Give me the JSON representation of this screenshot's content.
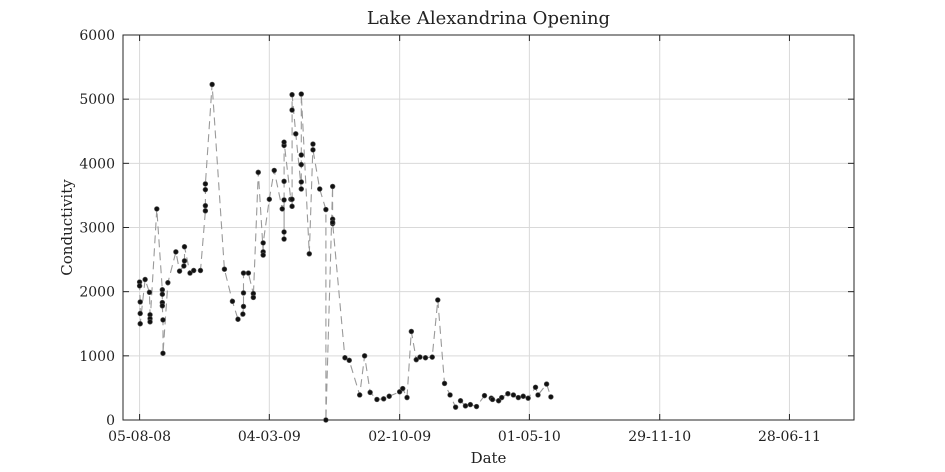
{
  "chart_data": {
    "type": "scatter",
    "title": "Lake Alexandrina Opening",
    "xlabel": "Date",
    "ylabel": "Conductivity",
    "x_is_date": true,
    "date_format": "DD-MM-YY",
    "xlim": [
      "2008-07-09",
      "2011-10-11"
    ],
    "ylim": [
      0,
      6000
    ],
    "xticks": [
      "2008-08-05",
      "2009-03-04",
      "2009-10-02",
      "2010-05-01",
      "2010-11-29",
      "2011-06-28"
    ],
    "xtick_labels": [
      "05-08-08",
      "04-03-09",
      "02-10-09",
      "01-05-10",
      "29-11-10",
      "28-06-11"
    ],
    "yticks": [
      0,
      1000,
      2000,
      3000,
      4000,
      5000,
      6000
    ],
    "ytick_labels": [
      "0",
      "1000",
      "2000",
      "3000",
      "4000",
      "5000",
      "6000"
    ],
    "grid": true,
    "legend": "none",
    "colors": {
      "points": "#111111",
      "line": "#9a9a9a"
    },
    "series": [
      {
        "style": "dashed line with markers",
        "points": [
          [
            "2008-08-05",
            2150
          ],
          [
            "2008-08-05",
            2090
          ],
          [
            "2008-08-06",
            1840
          ],
          [
            "2008-08-06",
            1660
          ],
          [
            "2008-08-06",
            1500
          ],
          [
            "2008-08-14",
            2190
          ],
          [
            "2008-08-21",
            1990
          ],
          [
            "2008-08-22",
            1640
          ],
          [
            "2008-08-22",
            1580
          ],
          [
            "2008-08-22",
            1530
          ],
          [
            "2008-09-02",
            3290
          ],
          [
            "2008-09-11",
            2030
          ],
          [
            "2008-09-11",
            1960
          ],
          [
            "2008-09-11",
            1830
          ],
          [
            "2008-09-11",
            1780
          ],
          [
            "2008-09-12",
            1560
          ],
          [
            "2008-09-12",
            1040
          ],
          [
            "2008-09-20",
            2140
          ],
          [
            "2008-10-03",
            2620
          ],
          [
            "2008-10-09",
            2320
          ],
          [
            "2008-10-16",
            2400
          ],
          [
            "2008-10-17",
            2480
          ],
          [
            "2008-10-17",
            2700
          ],
          [
            "2008-10-26",
            2290
          ],
          [
            "2008-11-01",
            2330
          ],
          [
            "2008-11-12",
            2330
          ],
          [
            "2008-11-20",
            3260
          ],
          [
            "2008-11-20",
            3340
          ],
          [
            "2008-11-20",
            3590
          ],
          [
            "2008-11-20",
            3680
          ],
          [
            "2008-12-01",
            5230
          ],
          [
            "2008-12-21",
            2350
          ],
          [
            "2009-01-03",
            1850
          ],
          [
            "2009-01-12",
            1570
          ],
          [
            "2009-01-20",
            1650
          ],
          [
            "2009-01-21",
            1770
          ],
          [
            "2009-01-21",
            1980
          ],
          [
            "2009-01-21",
            2290
          ],
          [
            "2009-01-29",
            2290
          ],
          [
            "2009-02-06",
            1970
          ],
          [
            "2009-02-06",
            1910
          ],
          [
            "2009-02-14",
            3860
          ],
          [
            "2009-02-22",
            2620
          ],
          [
            "2009-02-22",
            2570
          ],
          [
            "2009-02-22",
            2760
          ],
          [
            "2009-03-04",
            3440
          ],
          [
            "2009-03-12",
            3890
          ],
          [
            "2009-03-25",
            3290
          ],
          [
            "2009-03-28",
            3430
          ],
          [
            "2009-03-28",
            2930
          ],
          [
            "2009-03-28",
            2820
          ],
          [
            "2009-03-28",
            3720
          ],
          [
            "2009-03-28",
            4280
          ],
          [
            "2009-03-28",
            4330
          ],
          [
            "2009-04-08",
            3440
          ],
          [
            "2009-04-10",
            3440
          ],
          [
            "2009-04-10",
            3330
          ],
          [
            "2009-04-10",
            4830
          ],
          [
            "2009-04-10",
            5070
          ],
          [
            "2009-04-16",
            4460
          ],
          [
            "2009-04-25",
            3600
          ],
          [
            "2009-04-25",
            3710
          ],
          [
            "2009-04-25",
            3980
          ],
          [
            "2009-04-25",
            4130
          ],
          [
            "2009-04-25",
            5080
          ],
          [
            "2009-05-08",
            2590
          ],
          [
            "2009-05-14",
            4300
          ],
          [
            "2009-05-14",
            4210
          ],
          [
            "2009-05-25",
            3600
          ],
          [
            "2009-06-04",
            3280
          ],
          [
            "2009-06-04",
            0
          ],
          [
            "2009-06-15",
            3640
          ],
          [
            "2009-06-15",
            3130
          ],
          [
            "2009-06-15",
            3060
          ],
          [
            "2009-06-15",
            3080
          ],
          [
            "2009-07-05",
            970
          ],
          [
            "2009-07-12",
            930
          ],
          [
            "2009-07-29",
            390
          ],
          [
            "2009-08-06",
            1000
          ],
          [
            "2009-08-15",
            430
          ],
          [
            "2009-08-26",
            320
          ],
          [
            "2009-09-06",
            330
          ],
          [
            "2009-09-15",
            370
          ],
          [
            "2009-10-02",
            440
          ],
          [
            "2009-10-07",
            490
          ],
          [
            "2009-10-14",
            350
          ],
          [
            "2009-10-21",
            1380
          ],
          [
            "2009-10-29",
            940
          ],
          [
            "2009-11-04",
            980
          ],
          [
            "2009-11-13",
            970
          ],
          [
            "2009-11-24",
            980
          ],
          [
            "2009-12-03",
            1870
          ],
          [
            "2009-12-14",
            570
          ],
          [
            "2009-12-23",
            390
          ],
          [
            "2010-01-01",
            200
          ],
          [
            "2010-01-09",
            300
          ],
          [
            "2010-01-17",
            220
          ],
          [
            "2010-01-25",
            240
          ],
          [
            "2010-02-04",
            210
          ],
          [
            "2010-02-17",
            380
          ],
          [
            "2010-02-28",
            340
          ],
          [
            "2010-03-02",
            320
          ],
          [
            "2010-03-12",
            300
          ],
          [
            "2010-03-17",
            350
          ],
          [
            "2010-03-27",
            410
          ],
          [
            "2010-04-05",
            390
          ],
          [
            "2010-04-13",
            350
          ],
          [
            "2010-04-21",
            370
          ],
          [
            "2010-04-29",
            340
          ],
          [
            "2010-05-11",
            510
          ],
          [
            "2010-05-15",
            390
          ],
          [
            "2010-05-29",
            560
          ],
          [
            "2010-06-05",
            360
          ]
        ]
      }
    ]
  }
}
